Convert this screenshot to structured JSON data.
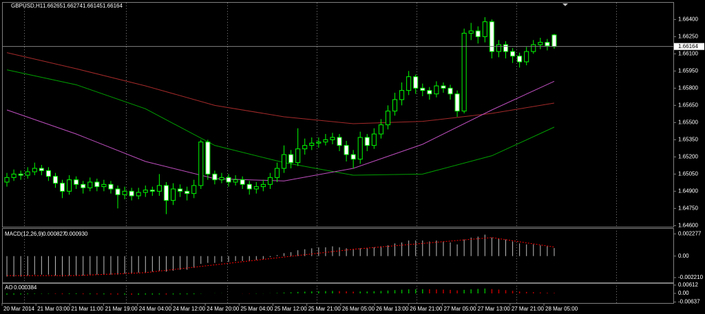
{
  "chart_data": [
    {
      "type": "candlestick",
      "title": "GBPUSD,H1",
      "x_labels": [
        "20 Mar 2014",
        "21 Mar 03:00",
        "21 Mar 11:00",
        "21 Mar 19:00",
        "24 Mar 04:00",
        "24 Mar 12:00",
        "24 Mar 20:00",
        "25 Mar 04:00",
        "25 Mar 12:00",
        "25 Mar 21:00",
        "26 Mar 05:00",
        "26 Mar 13:00",
        "26 Mar 21:00",
        "27 Mar 05:00",
        "27 Mar 13:00",
        "27 Mar 21:00",
        "28 Mar 05:00"
      ],
      "open": [
        1.6498,
        1.6502,
        1.6505,
        1.6504,
        1.6507,
        1.651,
        1.6508,
        1.6503,
        1.6497,
        1.649,
        1.65,
        1.6496,
        1.6493,
        1.6498,
        1.6494,
        1.6496,
        1.6492,
        1.6487,
        1.649,
        1.6486,
        1.6489,
        1.6491,
        1.649,
        1.6495,
        1.6482,
        1.6492,
        1.649,
        1.6488,
        1.6495,
        1.6533,
        1.6505,
        1.65,
        1.6502,
        1.6498,
        1.65,
        1.6496,
        1.6492,
        1.6494,
        1.6496,
        1.6502,
        1.651,
        1.6522,
        1.6515,
        1.6527,
        1.653,
        1.6532,
        1.6533,
        1.6535,
        1.6537,
        1.653,
        1.6522,
        1.6518,
        1.6537,
        1.653,
        1.654,
        1.6548,
        1.656,
        1.657,
        1.6578,
        1.659,
        1.658,
        1.6578,
        1.6575,
        1.6582,
        1.658,
        1.6575,
        1.656,
        1.6628,
        1.663,
        1.6625,
        1.6638,
        1.6612,
        1.6618,
        1.6612,
        1.6608,
        1.6603,
        1.6612,
        1.6618,
        1.662,
        1.66265
      ],
      "high": [
        1.6506,
        1.6509,
        1.6508,
        1.6511,
        1.6515,
        1.6513,
        1.6511,
        1.6506,
        1.65,
        1.6504,
        1.6503,
        1.6499,
        1.6502,
        1.6501,
        1.65,
        1.6499,
        1.6495,
        1.6494,
        1.6493,
        1.6493,
        1.6495,
        1.6494,
        1.6505,
        1.6498,
        1.6497,
        1.6496,
        1.6494,
        1.65,
        1.6535,
        1.6535,
        1.6508,
        1.6506,
        1.6505,
        1.6504,
        1.6503,
        1.6499,
        1.6498,
        1.65,
        1.6506,
        1.6515,
        1.653,
        1.6526,
        1.6545,
        1.6536,
        1.6537,
        1.6537,
        1.654,
        1.6541,
        1.654,
        1.6534,
        1.6526,
        1.6542,
        1.654,
        1.6545,
        1.6553,
        1.6565,
        1.6576,
        1.6585,
        1.6595,
        1.6592,
        1.6584,
        1.6581,
        1.6586,
        1.6585,
        1.6583,
        1.6578,
        1.6632,
        1.6637,
        1.6634,
        1.6642,
        1.664,
        1.6622,
        1.6621,
        1.6615,
        1.6611,
        1.6616,
        1.6622,
        1.6624,
        1.6623,
        1.66274
      ],
      "low": [
        1.6494,
        1.6499,
        1.65,
        1.6501,
        1.6504,
        1.6504,
        1.6499,
        1.6493,
        1.6484,
        1.6487,
        1.6492,
        1.6488,
        1.649,
        1.649,
        1.649,
        1.6488,
        1.6475,
        1.6483,
        1.6482,
        1.6483,
        1.6485,
        1.6486,
        1.6486,
        1.647,
        1.6478,
        1.6485,
        1.6482,
        1.6484,
        1.6492,
        1.65,
        1.6496,
        1.6497,
        1.6494,
        1.6495,
        1.6492,
        1.6487,
        1.6488,
        1.649,
        1.6492,
        1.6498,
        1.6506,
        1.651,
        1.6512,
        1.6522,
        1.6526,
        1.6528,
        1.653,
        1.6531,
        1.6525,
        1.6516,
        1.651,
        1.6514,
        1.6525,
        1.6527,
        1.6536,
        1.6544,
        1.6556,
        1.6565,
        1.6574,
        1.6575,
        1.6573,
        1.657,
        1.6572,
        1.6576,
        1.657,
        1.6555,
        1.6558,
        1.6622,
        1.6619,
        1.662,
        1.6606,
        1.6607,
        1.6606,
        1.6602,
        1.6598,
        1.66,
        1.661,
        1.6614,
        1.6613,
        1.66145
      ],
      "close": [
        1.6502,
        1.6505,
        1.6504,
        1.6507,
        1.651,
        1.6508,
        1.6503,
        1.6497,
        1.649,
        1.65,
        1.6496,
        1.6493,
        1.6498,
        1.6494,
        1.6496,
        1.6492,
        1.6487,
        1.649,
        1.6486,
        1.6489,
        1.6491,
        1.649,
        1.6495,
        1.6482,
        1.6492,
        1.649,
        1.6488,
        1.6495,
        1.6533,
        1.6505,
        1.65,
        1.6502,
        1.6498,
        1.65,
        1.6496,
        1.6492,
        1.6494,
        1.6496,
        1.6502,
        1.651,
        1.6522,
        1.6515,
        1.6527,
        1.653,
        1.6532,
        1.6533,
        1.6535,
        1.6537,
        1.653,
        1.6522,
        1.6518,
        1.6537,
        1.653,
        1.654,
        1.6548,
        1.656,
        1.657,
        1.6578,
        1.659,
        1.658,
        1.6578,
        1.6575,
        1.6582,
        1.658,
        1.6575,
        1.656,
        1.6628,
        1.663,
        1.6625,
        1.6638,
        1.6612,
        1.6618,
        1.6612,
        1.6608,
        1.6603,
        1.6612,
        1.6618,
        1.662,
        1.6617,
        1.66164
      ],
      "candle_color": "#00ff00",
      "bull_fill": "#000000",
      "bear_fill": "#ffffff",
      "series": [
        {
          "color": "#a52a2a",
          "x": [
            0,
            10,
            20,
            30,
            40,
            50,
            60,
            70,
            79
          ],
          "values": [
            1.6611,
            1.6597,
            1.6582,
            1.6565,
            1.6555,
            1.6549,
            1.6551,
            1.6558,
            1.6567
          ]
        },
        {
          "color": "#00a000",
          "x": [
            0,
            10,
            20,
            30,
            40,
            50,
            60,
            70,
            79
          ],
          "values": [
            1.6596,
            1.6583,
            1.6562,
            1.653,
            1.6515,
            1.6504,
            1.6505,
            1.6521,
            1.6546
          ]
        },
        {
          "color": "#c050c0",
          "x": [
            0,
            10,
            20,
            30,
            40,
            50,
            60,
            70,
            79
          ],
          "values": [
            1.6561,
            1.654,
            1.6516,
            1.6501,
            1.6499,
            1.651,
            1.6531,
            1.6561,
            1.6586
          ]
        }
      ],
      "ylim": [
        1.6459,
        1.6654
      ],
      "yticks": [
        {
          "value": 1.664,
          "label": "1.66400"
        },
        {
          "value": 1.6625,
          "label": "1.66250"
        },
        {
          "value": 1.661,
          "label": "1.66100"
        },
        {
          "value": 1.6595,
          "label": "1.65950"
        },
        {
          "value": 1.658,
          "label": "1.65800"
        },
        {
          "value": 1.6565,
          "label": "1.65650"
        },
        {
          "value": 1.655,
          "label": "1.65500"
        },
        {
          "value": 1.6535,
          "label": "1.65350"
        },
        {
          "value": 1.652,
          "label": "1.65200"
        },
        {
          "value": 1.6505,
          "label": "1.65050"
        },
        {
          "value": 1.649,
          "label": "1.64900"
        },
        {
          "value": 1.6475,
          "label": "1.64750"
        },
        {
          "value": 1.646,
          "label": "1.64600"
        }
      ]
    },
    {
      "type": "macd",
      "title": "MACD(12,26,9)",
      "color": "#c0c0c0",
      "values": [
        -0.0021,
        -0.0021,
        -0.0021,
        -0.002,
        -0.0019,
        -0.0019,
        -0.0019,
        -0.002,
        -0.0021,
        -0.002,
        -0.002,
        -0.002,
        -0.0019,
        -0.0019,
        -0.0019,
        -0.0019,
        -0.0019,
        -0.0018,
        -0.0018,
        -0.0017,
        -0.0017,
        -0.0016,
        -0.0015,
        -0.0016,
        -0.0015,
        -0.0014,
        -0.0014,
        -0.0012,
        -0.0008,
        -0.0007,
        -0.0007,
        -0.0006,
        -0.0006,
        -0.0005,
        -0.0005,
        -0.0005,
        -0.0004,
        -0.0003,
        -0.0001,
        0.0001,
        0.0003,
        0.0004,
        0.0006,
        0.0007,
        0.0008,
        0.0009,
        0.0009,
        0.001,
        0.0009,
        0.0008,
        0.0007,
        0.0008,
        0.0008,
        0.0009,
        0.001,
        0.0011,
        0.0013,
        0.0014,
        0.0016,
        0.0016,
        0.0016,
        0.0015,
        0.0016,
        0.0015,
        0.0014,
        0.0012,
        0.0017,
        0.0019,
        0.002,
        0.0022,
        0.0019,
        0.0018,
        0.0017,
        0.0015,
        0.0013,
        0.0012,
        0.0012,
        0.0011,
        0.001,
        0.000827
      ],
      "signal": {
        "color": "#ff0000",
        "x": [
          0,
          10,
          20,
          30,
          40,
          50,
          60,
          70,
          79
        ],
        "values": [
          -0.002,
          -0.002,
          -0.0017,
          -0.0009,
          -0.0001,
          0.0007,
          0.0013,
          0.0019,
          0.00093
        ],
        "value_labels": [
          null,
          null,
          null,
          null,
          null,
          null,
          null,
          null,
          "0.000930"
        ]
      },
      "ylim": [
        -0.0027,
        0.0028
      ],
      "yticks": [
        0.002277,
        {
          "value": 0,
          "label": "0.00"
        },
        {
          "value": -0.00221,
          "label": "-0.002210"
        }
      ]
    },
    {
      "type": "ao",
      "title": "AO",
      "up_color": "#00b000",
      "down_color": "#c00000",
      "values": [
        -0.001,
        -0.0009,
        -0.0008,
        -0.0006,
        -0.0004,
        -0.0003,
        -0.0003,
        -0.0004,
        -0.0006,
        -0.0005,
        -0.0005,
        -0.0006,
        -0.0006,
        -0.0007,
        -0.0007,
        -0.0008,
        -0.0009,
        -0.0009,
        -0.001,
        -0.001,
        -0.0009,
        -0.0009,
        -0.0008,
        -0.0009,
        -0.0008,
        -0.0007,
        -0.0007,
        -0.0006,
        -0.0002,
        0.0,
        0.0001,
        0.0001,
        0.0,
        0.0,
        -0.0001,
        -0.0002,
        -0.0002,
        -0.0001,
        0.0001,
        0.0003,
        0.0006,
        0.0008,
        0.0011,
        0.0013,
        0.0015,
        0.0016,
        0.0017,
        0.0018,
        0.0017,
        0.0015,
        0.0013,
        0.0014,
        0.0014,
        0.0016,
        0.0018,
        0.0021,
        0.0024,
        0.0027,
        0.003,
        0.0031,
        0.0031,
        0.003,
        0.0029,
        0.0028,
        0.0026,
        0.0022,
        0.0026,
        0.003,
        0.0033,
        0.0036,
        0.0032,
        0.0028,
        0.0024,
        0.0019,
        0.0014,
        0.0011,
        0.0009,
        0.0007,
        0.0005,
        0.000384
      ],
      "ylim": [
        -0.0071,
        0.0071
      ],
      "yticks": [
        0.00612,
        {
          "value": 0,
          "label": "0.00"
        },
        -0.00637
      ]
    }
  ]
}
